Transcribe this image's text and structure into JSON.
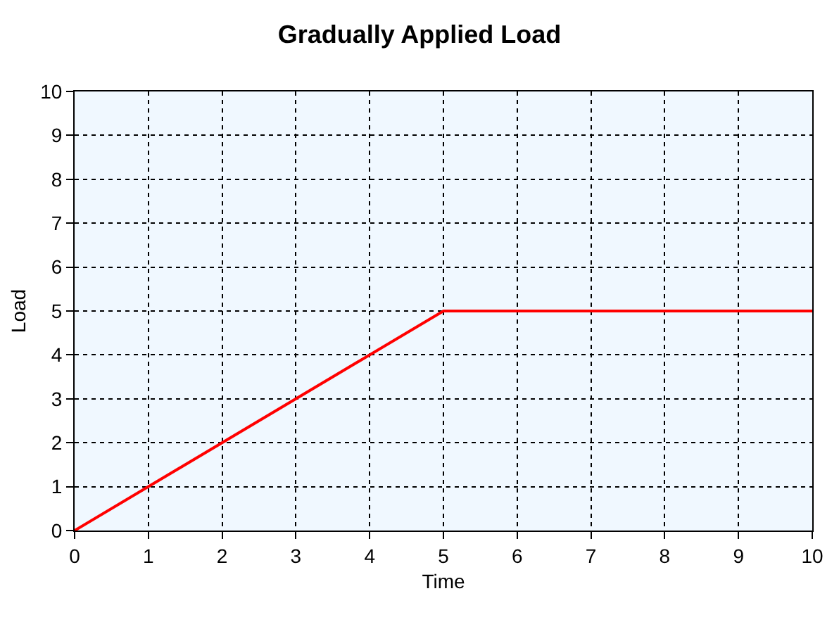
{
  "chart_data": {
    "type": "line",
    "title": "Gradually Applied Load",
    "xlabel": "Time",
    "ylabel": "Load",
    "x": [
      0,
      5,
      10
    ],
    "series": [
      {
        "color": "#ff0000",
        "values": [
          0,
          5,
          5
        ]
      }
    ],
    "xlim": [
      0,
      10
    ],
    "xticks": [
      0,
      1,
      2,
      3,
      4,
      5,
      6,
      7,
      8,
      9,
      10
    ],
    "ylim": [
      0,
      10
    ],
    "yticks": [
      0,
      1,
      2,
      3,
      4,
      5,
      6,
      7,
      8,
      9,
      10
    ],
    "grid": true,
    "marker": "none",
    "line_style": "solid"
  }
}
